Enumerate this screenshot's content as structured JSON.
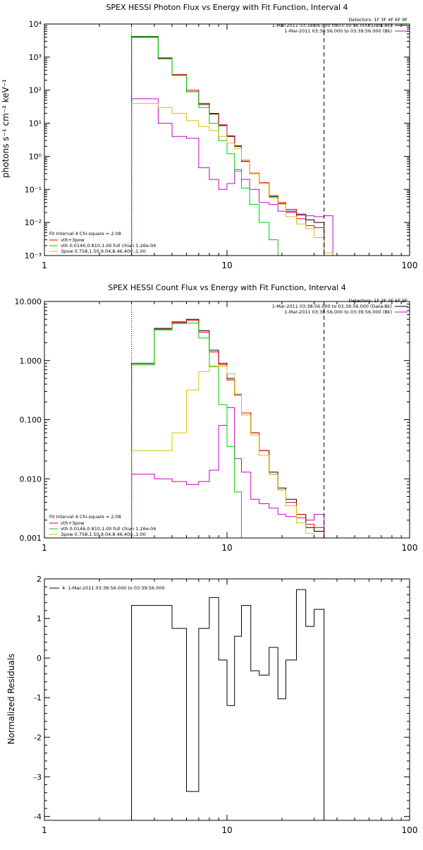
{
  "chart_data": [
    {
      "type": "line",
      "scale": {
        "x": "log",
        "y": "log"
      },
      "title": "SPEX HESSI Photon Flux vs Energy with Fit Function, Interval 4",
      "xlabel": "",
      "ylabel": "photons s⁻¹ cm⁻² keV⁻¹",
      "xlim": [
        1,
        100
      ],
      "ylim": [
        0.001,
        10000
      ],
      "x_ticks": [
        1,
        10,
        100
      ],
      "x_tick_labels": [
        "1",
        "10",
        "100"
      ],
      "y_ticks": [
        0.001,
        0.01,
        0.1,
        1,
        10,
        100,
        1000,
        10000
      ],
      "y_tick_labels": [
        "10⁻³",
        "10⁻²",
        "10⁻¹",
        "10⁰",
        "10¹",
        "10²",
        "10³",
        "10⁴"
      ],
      "vlines": [
        {
          "x": 3,
          "style": "dotted"
        },
        {
          "x": 34,
          "style": "dashed"
        }
      ],
      "legend_top_right": {
        "detectors": "Detectors: 1F 3F 4F 6F 9F",
        "entries": [
          {
            "label": "1-Mar-2011 03:38:56.000 to 03:39:56.000 (Data-Bk)",
            "color": "#000000"
          },
          {
            "label": "1-Mar-2011 03:38:56.000 to 03:39:56.000 (Bk)",
            "color": "#cc00cc"
          }
        ]
      },
      "legend_bottom_left": {
        "header": "Fit Interval 4   Chi-square = 2.08",
        "entries": [
          {
            "label": "vth+3pow",
            "color": "#e00000"
          },
          {
            "label": "vth 0.0146,0.810,1.00   full chian 1.26e-04",
            "color": "#00cc00"
          },
          {
            "label": "3pow 0.758,1.50,9.04,8.46,400.,1.00",
            "color": "#d8c000"
          }
        ]
      },
      "edges": [
        3,
        3.5,
        4.2,
        5,
        6,
        7,
        8,
        9,
        10,
        11,
        12,
        13.3,
        15,
        17,
        19,
        21,
        24,
        27,
        30,
        34,
        38
      ],
      "series": [
        {
          "key": "data_bk",
          "color": "#000000",
          "values": [
            4000,
            4000,
            900,
            280,
            90,
            37,
            19,
            8.5,
            4,
            2,
            0.7,
            0.3,
            0.15,
            0.06,
            0.037,
            0.022,
            0.017,
            0.012,
            0.01,
            0.001
          ]
        },
        {
          "key": "bk",
          "color": "#cc00cc",
          "values": [
            55,
            55,
            10,
            4,
            3.5,
            0.45,
            0.2,
            0.1,
            0.15,
            0.4,
            0.2,
            0.1,
            0.04,
            0.035,
            0.022,
            0.02,
            0.018,
            0.016,
            0.015,
            0.016
          ]
        },
        {
          "key": "total_fit",
          "color": "#e00000",
          "values": [
            4200,
            4200,
            950,
            300,
            100,
            40,
            20,
            9,
            4.2,
            2.1,
            0.72,
            0.31,
            0.16,
            0.065,
            0.04,
            0.025,
            0.013,
            0.008,
            0.007,
            0.001
          ]
        },
        {
          "key": "thermal",
          "color": "#00cc00",
          "values": [
            4200,
            4200,
            950,
            280,
            90,
            30,
            10,
            3,
            1.2,
            0.35,
            0.11,
            0.035,
            0.01,
            0.003,
            0.0008,
            0.0001
          ]
        },
        {
          "key": "power",
          "color": "#d8c000",
          "values": [
            40,
            40,
            30,
            20,
            12,
            8,
            6,
            4,
            2.5,
            1.7,
            0.8,
            0.3,
            0.15,
            0.055,
            0.036,
            0.015,
            0.009,
            0.0065,
            0.0035,
            0.0012,
            0.0008
          ]
        }
      ]
    },
    {
      "type": "line",
      "scale": {
        "x": "log",
        "y": "log"
      },
      "title": "SPEX HESSI Count Flux vs Energy with Fit Function, Interval 4",
      "xlabel": "",
      "ylabel": "",
      "xlim": [
        1,
        100
      ],
      "ylim": [
        0.001,
        10
      ],
      "x_ticks": [
        1,
        10,
        100
      ],
      "x_tick_labels": [
        "1",
        "10",
        "100"
      ],
      "y_ticks": [
        0.001,
        0.01,
        0.1,
        1,
        10
      ],
      "y_tick_labels": [
        "0.001",
        "0.010",
        "0.100",
        "1.000",
        "10.000"
      ],
      "vlines": [
        {
          "x": 3,
          "style": "dotted"
        },
        {
          "x": 34,
          "style": "dashed"
        }
      ],
      "legend_top_right": {
        "detectors": "Detectors: 1F 3F 4F 6F 9F",
        "entries": [
          {
            "label": "1-Mar-2011 03:38:56.000 to 03:39:56.000 (Data-Bk)",
            "color": "#000000"
          },
          {
            "label": "1-Mar-2011 03:38:56.000 to 03:39:56.000 (Bk)",
            "color": "#cc00cc"
          }
        ]
      },
      "legend_bottom_left": {
        "header": "Fit Interval 4   Chi-square = 2.08",
        "entries": [
          {
            "label": "vth+3pow",
            "color": "#e00000"
          },
          {
            "label": "vth 0.0146,0.810,1.00   full chian 1.26e-04",
            "color": "#00cc00"
          },
          {
            "label": "3pow 0.758,1.50,9.04,8.46,400.,1.00",
            "color": "#d8c000"
          }
        ]
      },
      "edges": [
        3,
        4,
        5,
        6,
        7,
        8,
        9,
        10,
        11,
        12,
        13.5,
        15,
        17,
        19,
        21,
        24,
        27,
        30,
        34
      ],
      "series": [
        {
          "key": "data_bk",
          "color": "#000000",
          "values": [
            0.9,
            3.5,
            4.5,
            5,
            3.2,
            1.5,
            0.9,
            0.5,
            0.27,
            0.13,
            0.06,
            0.03,
            0.013,
            0.007,
            0.0045,
            0.0025,
            0.0015,
            0.0013
          ]
        },
        {
          "key": "bk",
          "color": "#cc00cc",
          "values": [
            0.012,
            0.01,
            0.009,
            0.008,
            0.009,
            0.014,
            0.08,
            0.16,
            0.022,
            0.013,
            0.0045,
            0.0038,
            0.0032,
            0.0025,
            0.0023,
            0.0022,
            0.002,
            0.0025
          ]
        },
        {
          "key": "total_fit",
          "color": "#e00000",
          "values": [
            0.85,
            3.4,
            4.4,
            4.8,
            3.0,
            1.4,
            0.85,
            0.47,
            0.26,
            0.13,
            0.06,
            0.03,
            0.012,
            0.0065,
            0.004,
            0.0025,
            0.0017,
            0.0015
          ]
        },
        {
          "key": "thermal",
          "color": "#00cc00",
          "values": [
            0.85,
            3.3,
            4.2,
            4.3,
            2.4,
            0.8,
            0.18,
            0.035,
            0.006,
            0.0008
          ]
        },
        {
          "key": "power",
          "color": "#d8c000",
          "values": [
            0.03,
            0.03,
            0.06,
            0.32,
            0.65,
            0.78,
            0.8,
            0.6,
            0.27,
            0.12,
            0.055,
            0.025,
            0.012,
            0.0065,
            0.0035,
            0.0018,
            0.0012,
            0.0009
          ]
        }
      ]
    },
    {
      "type": "line",
      "scale": {
        "x": "log",
        "y": "linear"
      },
      "title": "",
      "xlabel": "",
      "ylabel": "Normalized Residuals",
      "xlim": [
        1,
        100
      ],
      "ylim": [
        -4.1,
        2
      ],
      "x_ticks": [
        1,
        10,
        100
      ],
      "x_tick_labels": [
        "1",
        "10",
        "100"
      ],
      "y_ticks": [
        -4,
        -3,
        -2,
        -1,
        0,
        1,
        2
      ],
      "y_tick_labels": [
        "-4",
        "-3",
        "-2",
        "-1",
        "0",
        "1",
        "2"
      ],
      "legend": {
        "entries": [
          {
            "label": "4.  1-Mar-2011 03:38:56.000 to 03:39:56.000",
            "color": "#000000"
          }
        ]
      },
      "edges": [
        3,
        4,
        5,
        6,
        7,
        8,
        9,
        10,
        11,
        12,
        13.5,
        15,
        17,
        19,
        21,
        24,
        27,
        30,
        34
      ],
      "series": [
        {
          "key": "residuals",
          "color": "#000000",
          "values": [
            1.33,
            1.33,
            0.75,
            -3.37,
            0.75,
            1.53,
            -0.05,
            -1.2,
            0.55,
            1.33,
            -0.32,
            -0.43,
            0.27,
            -1.03,
            -0.05,
            1.73,
            0.8,
            1.23
          ]
        }
      ]
    }
  ]
}
